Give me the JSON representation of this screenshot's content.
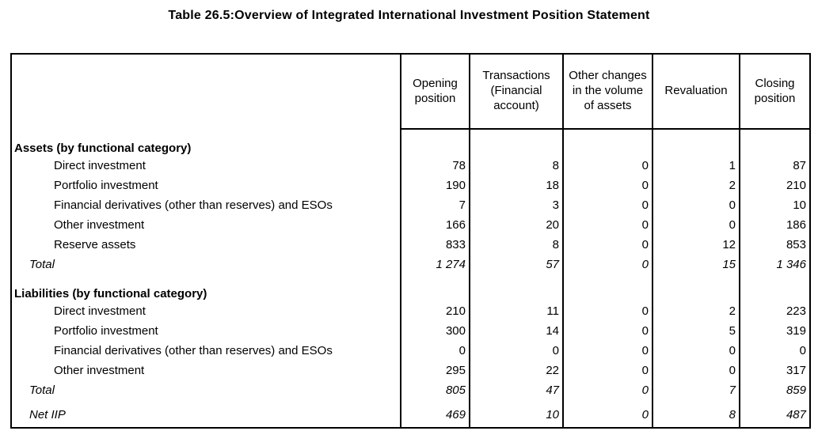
{
  "title": "Table 26.5:Overview of Integrated International Investment Position Statement",
  "table": {
    "column_headers": {
      "label": "",
      "opening": "Opening position",
      "transactions": "Transactions (Financial account)",
      "other_changes": "Other changes in the volume of assets",
      "revaluation": "Revaluation",
      "closing": "Closing position"
    },
    "rows": [
      {
        "label": "Assets (by functional category)",
        "style": "section",
        "values": [
          "",
          "",
          "",
          "",
          ""
        ]
      },
      {
        "label": "Direct investment",
        "style": "item",
        "values": [
          "78",
          "8",
          "0",
          "1",
          "87"
        ]
      },
      {
        "label": "Portfolio investment",
        "style": "item",
        "values": [
          "190",
          "18",
          "0",
          "2",
          "210"
        ]
      },
      {
        "label": "Financial derivatives (other than reserves) and ESOs",
        "style": "item",
        "values": [
          "7",
          "3",
          "0",
          "0",
          "10"
        ]
      },
      {
        "label": "Other investment",
        "style": "item",
        "values": [
          "166",
          "20",
          "0",
          "0",
          "186"
        ]
      },
      {
        "label": "Reserve assets",
        "style": "item",
        "values": [
          "833",
          "8",
          "0",
          "12",
          "853"
        ]
      },
      {
        "label": "Total",
        "style": "total",
        "values": [
          "1 274",
          "57",
          "0",
          "15",
          "1 346"
        ]
      },
      {
        "label": "Liabilities (by functional category)",
        "style": "section",
        "values": [
          "",
          "",
          "",
          "",
          ""
        ]
      },
      {
        "label": "Direct investment",
        "style": "item",
        "values": [
          "210",
          "11",
          "0",
          "2",
          "223"
        ]
      },
      {
        "label": "Portfolio investment",
        "style": "item",
        "values": [
          "300",
          "14",
          "0",
          "5",
          "319"
        ]
      },
      {
        "label": "Financial derivatives (other than reserves) and ESOs",
        "style": "item",
        "values": [
          "0",
          "0",
          "0",
          "0",
          "0"
        ]
      },
      {
        "label": "Other investment",
        "style": "item",
        "values": [
          "295",
          "22",
          "0",
          "0",
          "317"
        ]
      },
      {
        "label": "Total",
        "style": "total",
        "values": [
          "805",
          "47",
          "0",
          "7",
          "859"
        ]
      },
      {
        "label": "Net IIP",
        "style": "net",
        "values": [
          "469",
          "10",
          "0",
          "8",
          "487"
        ]
      }
    ],
    "border_color": "#000000",
    "text_color": "#000000"
  }
}
